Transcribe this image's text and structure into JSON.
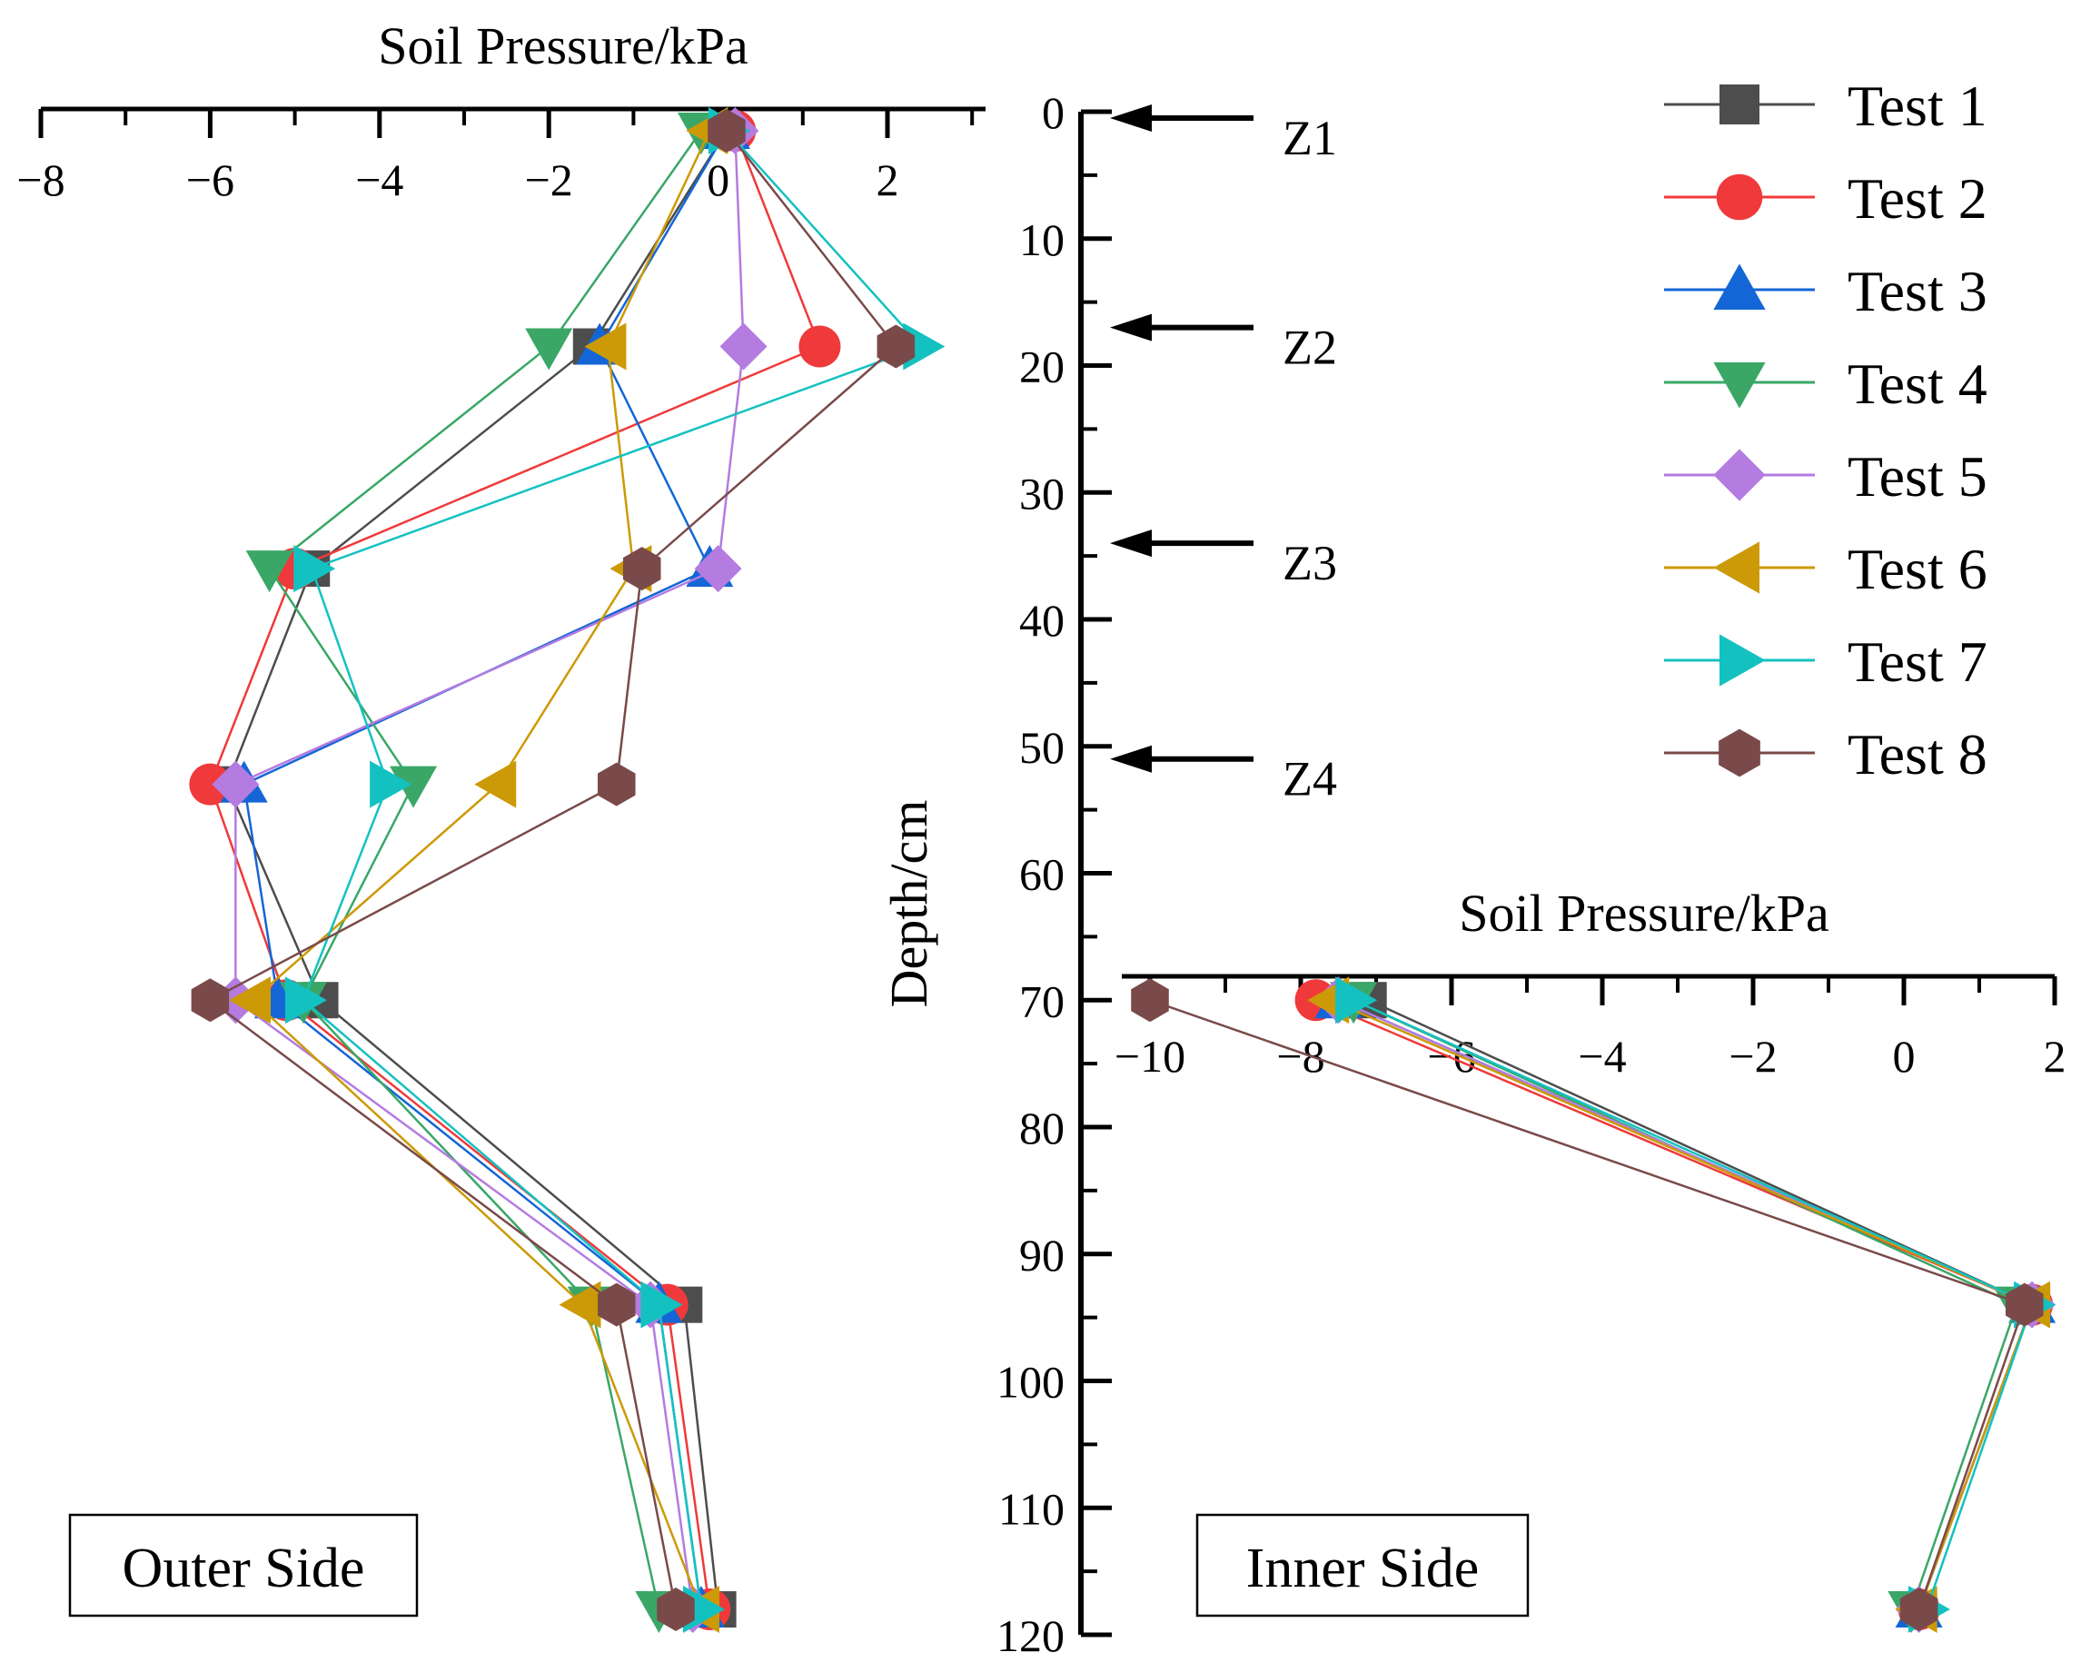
{
  "chart_data": {
    "type": "line",
    "title": "",
    "depth_axis": {
      "label": "Depth/cm",
      "range": [
        0,
        120
      ],
      "ticks": [
        "0",
        "10",
        "20",
        "30",
        "40",
        "50",
        "60",
        "70",
        "80",
        "90",
        "100",
        "110",
        "120"
      ],
      "ticks_values": [
        0,
        10,
        20,
        30,
        40,
        50,
        60,
        70,
        80,
        90,
        100,
        110,
        120
      ]
    },
    "markers": [
      {
        "label": "Z1",
        "depth": 0.5
      },
      {
        "label": "Z2",
        "depth": 17
      },
      {
        "label": "Z3",
        "depth": 34
      },
      {
        "label": "Z4",
        "depth": 51
      }
    ],
    "outer": {
      "panel_label": "Outer Side",
      "xlabel": "Soil Pressure/kPa",
      "xlim": [
        -8,
        3
      ],
      "xticks": [
        "−8",
        "−6",
        "−4",
        "−2",
        "0",
        "2"
      ],
      "xticks_values": [
        -8,
        -6,
        -4,
        -2,
        0,
        2
      ],
      "depths": [
        1.5,
        18.5,
        36,
        53,
        70,
        94,
        118
      ],
      "series": [
        {
          "name": "Test 1",
          "values": [
            0.1,
            -1.5,
            -4.8,
            -5.8,
            -4.7,
            -0.4,
            0.0
          ]
        },
        {
          "name": "Test 2",
          "values": [
            0.2,
            1.2,
            -5.0,
            -6.0,
            -5.1,
            -0.6,
            -0.1
          ]
        },
        {
          "name": "Test 3",
          "values": [
            0.1,
            -1.4,
            -0.1,
            -5.6,
            -5.2,
            -0.7,
            -0.2
          ]
        },
        {
          "name": "Test 4",
          "values": [
            -0.2,
            -2.0,
            -5.3,
            -3.6,
            -4.9,
            -1.5,
            -0.7
          ]
        },
        {
          "name": "Test 5",
          "values": [
            0.2,
            0.3,
            0.0,
            -5.7,
            -5.7,
            -0.8,
            -0.3
          ]
        },
        {
          "name": "Test 6",
          "values": [
            -0.1,
            -1.3,
            -1.0,
            -2.6,
            -5.5,
            -1.6,
            -0.2
          ]
        },
        {
          "name": "Test 7",
          "values": [
            0.1,
            2.4,
            -4.8,
            -3.9,
            -4.9,
            -0.7,
            -0.2
          ]
        },
        {
          "name": "Test 8",
          "values": [
            0.1,
            2.1,
            -0.9,
            -1.2,
            -6.0,
            -1.2,
            -0.5
          ]
        }
      ]
    },
    "inner": {
      "panel_label": "Inner Side",
      "xlabel": "Soil Pressure/kPa",
      "xlim": [
        -10.5,
        2
      ],
      "xticks": [
        "−10",
        "−8",
        "−6",
        "−4",
        "−2",
        "0",
        "2"
      ],
      "xticks_values": [
        -10,
        -8,
        -6,
        -4,
        -2,
        0,
        2
      ],
      "depths": [
        70,
        94,
        118
      ],
      "series": [
        {
          "name": "Test 1",
          "values": [
            -7.1,
            1.7,
            0.2
          ]
        },
        {
          "name": "Test 2",
          "values": [
            -7.8,
            1.7,
            0.2
          ]
        },
        {
          "name": "Test 3",
          "values": [
            -7.5,
            1.7,
            0.2
          ]
        },
        {
          "name": "Test 4",
          "values": [
            -7.3,
            1.5,
            0.1
          ]
        },
        {
          "name": "Test 5",
          "values": [
            -7.5,
            1.7,
            0.2
          ]
        },
        {
          "name": "Test 6",
          "values": [
            -7.6,
            1.7,
            0.2
          ]
        },
        {
          "name": "Test 7",
          "values": [
            -7.3,
            1.7,
            0.3
          ]
        },
        {
          "name": "Test 8",
          "values": [
            -10.0,
            1.6,
            0.2
          ]
        }
      ]
    },
    "legend": {
      "placement": "top-right",
      "entries": [
        {
          "name": "Test 1",
          "color": "#4d4d4d",
          "marker": "square"
        },
        {
          "name": "Test 2",
          "color": "#f0393a",
          "marker": "circle"
        },
        {
          "name": "Test 3",
          "color": "#1466d6",
          "marker": "triangle-up"
        },
        {
          "name": "Test 4",
          "color": "#3aa767",
          "marker": "triangle-down"
        },
        {
          "name": "Test 5",
          "color": "#b47be0",
          "marker": "diamond"
        },
        {
          "name": "Test 6",
          "color": "#cc9a06",
          "marker": "triangle-left"
        },
        {
          "name": "Test 7",
          "color": "#14c1c1",
          "marker": "triangle-right"
        },
        {
          "name": "Test 8",
          "color": "#7a4a4a",
          "marker": "hexagon"
        }
      ]
    }
  }
}
